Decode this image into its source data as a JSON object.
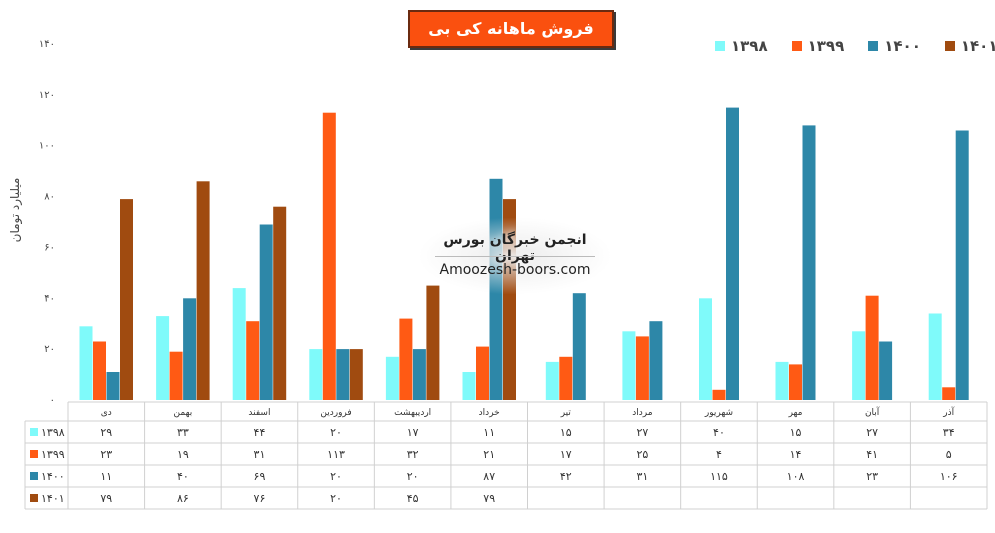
{
  "title": "فروش ماهانه کی بی سی",
  "watermark": {
    "line1": "انجمن خبرگان بورس تهران",
    "line2": "Amoozesh-boors.com"
  },
  "colors": {
    "1398": "#7ffafa",
    "1399": "#ff5a14",
    "1400": "#2d87a8",
    "1401": "#a04b10"
  },
  "chart_data": {
    "type": "bar",
    "ylabel": "میلیارد تومان",
    "ylim": [
      0,
      140
    ],
    "yticks": [
      "۰",
      "۲۰",
      "۴۰",
      "۶۰",
      "۸۰",
      "۱۰۰",
      "۱۲۰",
      "۱۴۰"
    ],
    "categories": [
      "دی",
      "بهمن",
      "اسفند",
      "فروردین",
      "اردیبهشت",
      "خرداد",
      "تیر",
      "مرداد",
      "شهریور",
      "مهر",
      "آبان",
      "آذر"
    ],
    "series": [
      {
        "name": "۱۳۹۸",
        "key": "1398",
        "values": [
          29,
          33,
          44,
          20,
          17,
          11,
          15,
          27,
          40,
          15,
          27,
          34
        ],
        "labels": [
          "۲۹",
          "۳۳",
          "۴۴",
          "۲۰",
          "۱۷",
          "۱۱",
          "۱۵",
          "۲۷",
          "۴۰",
          "۱۵",
          "۲۷",
          "۳۴"
        ]
      },
      {
        "name": "۱۳۹۹",
        "key": "1399",
        "values": [
          23,
          19,
          31,
          113,
          32,
          21,
          17,
          25,
          4,
          14,
          41,
          5
        ],
        "labels": [
          "۲۳",
          "۱۹",
          "۳۱",
          "۱۱۳",
          "۳۲",
          "۲۱",
          "۱۷",
          "۲۵",
          "۴",
          "۱۴",
          "۴۱",
          "۵"
        ]
      },
      {
        "name": "۱۴۰۰",
        "key": "1400",
        "values": [
          11,
          40,
          69,
          20,
          20,
          87,
          42,
          31,
          115,
          108,
          23,
          106
        ],
        "labels": [
          "۱۱",
          "۴۰",
          "۶۹",
          "۲۰",
          "۲۰",
          "۸۷",
          "۴۲",
          "۳۱",
          "۱۱۵",
          "۱۰۸",
          "۲۳",
          "۱۰۶"
        ]
      },
      {
        "name": "۱۴۰۱",
        "key": "1401",
        "values": [
          79,
          86,
          76,
          20,
          45,
          79,
          null,
          null,
          null,
          null,
          null,
          null
        ],
        "labels": [
          "۷۹",
          "۸۶",
          "۷۶",
          "۲۰",
          "۴۵",
          "۷۹",
          "",
          "",
          "",
          "",
          "",
          ""
        ]
      }
    ],
    "legend_position": "top-right",
    "grid": false
  }
}
